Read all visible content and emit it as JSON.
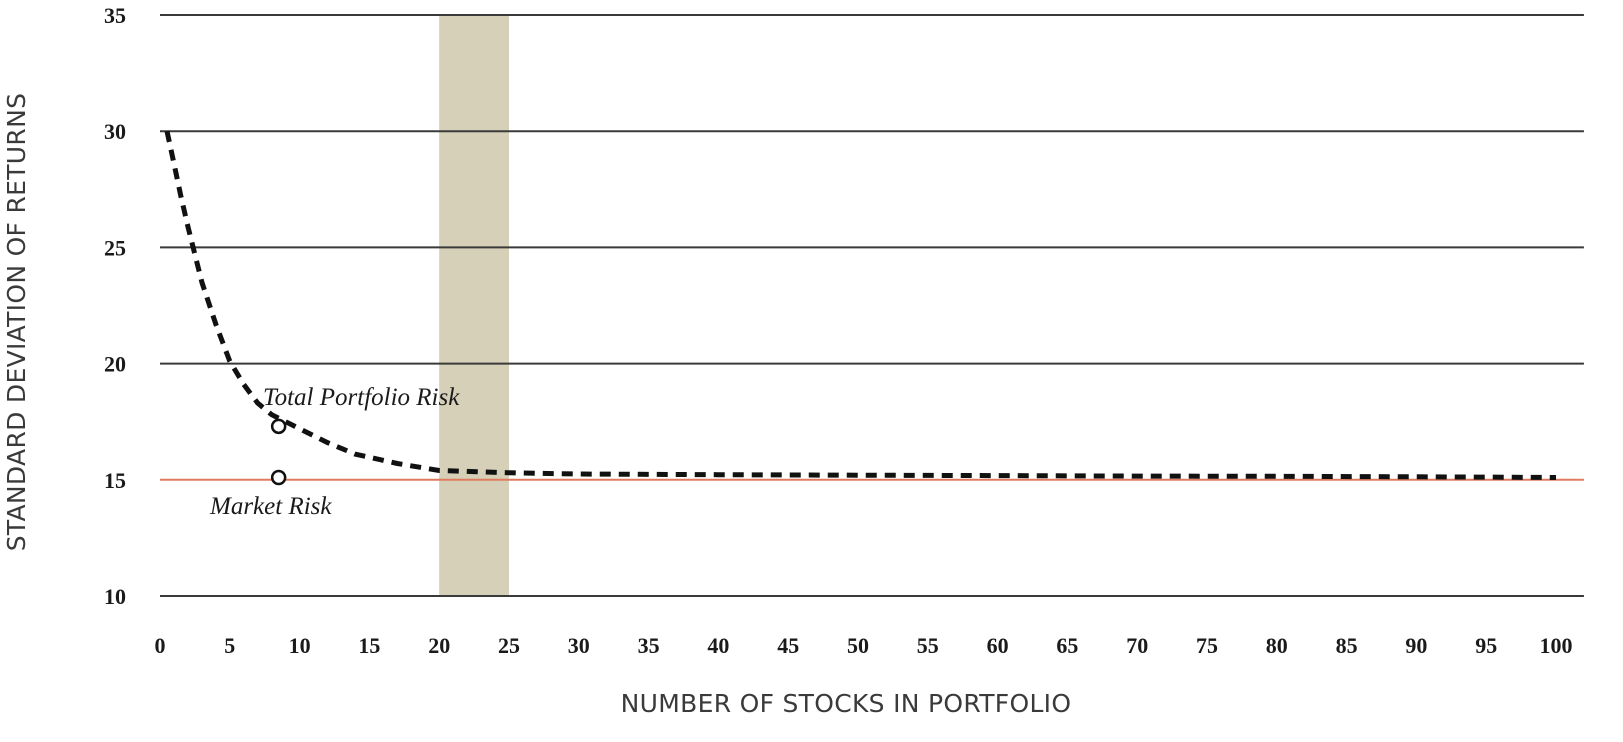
{
  "chart_data": {
    "type": "line",
    "title": "",
    "xlabel": "NUMBER OF STOCKS IN PORTFOLIO",
    "ylabel": "STANDARD DEVIATION OF RETURNS",
    "xlim": [
      0,
      102
    ],
    "ylim": [
      10,
      35
    ],
    "x_ticks": [
      0,
      5,
      10,
      15,
      20,
      25,
      30,
      35,
      40,
      45,
      50,
      55,
      60,
      65,
      70,
      75,
      80,
      85,
      90,
      95,
      100
    ],
    "y_ticks": [
      10,
      15,
      20,
      25,
      30,
      35
    ],
    "grid": "horizontal",
    "shaded_band": {
      "x_from": 20,
      "x_to": 25,
      "color": "#d6d0b8"
    },
    "series": [
      {
        "name": "Total Portfolio Risk",
        "style": "dashed",
        "color": "#111111",
        "x": [
          0.5,
          1,
          1.5,
          2,
          3,
          4,
          5,
          6,
          7,
          8,
          10,
          12,
          14,
          17,
          20,
          25,
          30,
          40,
          50,
          60,
          70,
          80,
          90,
          100
        ],
        "y": [
          30,
          28.6,
          27.2,
          25.9,
          23.5,
          21.7,
          20.1,
          19.1,
          18.3,
          17.8,
          17.2,
          16.6,
          16.1,
          15.7,
          15.4,
          15.3,
          15.25,
          15.22,
          15.2,
          15.18,
          15.16,
          15.15,
          15.13,
          15.1
        ]
      },
      {
        "name": "Market Risk",
        "style": "solid",
        "color": "#e07a5f",
        "x": [
          0,
          102
        ],
        "y": [
          15,
          15
        ]
      }
    ],
    "markers": [
      {
        "x": 8.5,
        "y": 17.3,
        "label": "Total Portfolio Risk"
      },
      {
        "x": 8.5,
        "y": 15.1,
        "label": "Market Risk"
      }
    ]
  },
  "colors": {
    "grid": "#3a3a3a",
    "market_line": "#e07a5f",
    "band": "#d6d0b8",
    "curve": "#111111"
  }
}
